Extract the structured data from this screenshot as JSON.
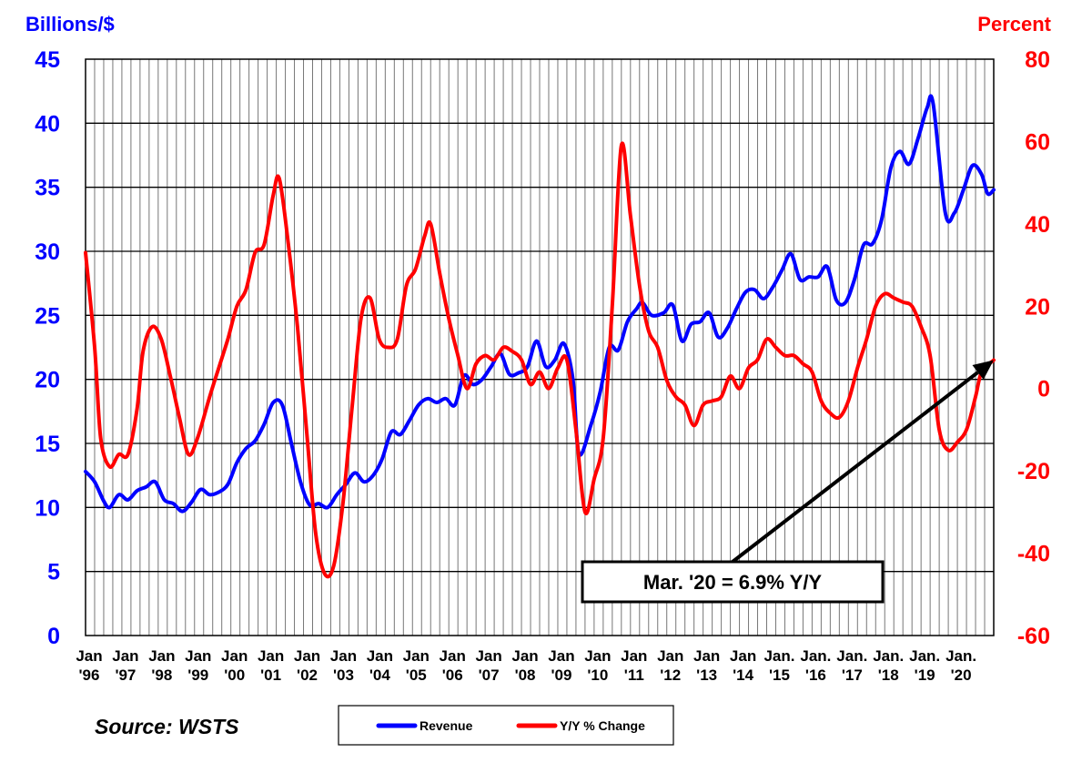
{
  "chart_data": {
    "type": "line",
    "left_axis_label": "Billions/$",
    "right_axis_label": "Percent",
    "left_ylim": [
      0,
      45
    ],
    "right_ylim": [
      -60,
      80
    ],
    "left_ticks": [
      "45",
      "40",
      "35",
      "30",
      "25",
      "20",
      "15",
      "10",
      "5",
      "0"
    ],
    "right_ticks": [
      "80",
      "60",
      "40",
      "20",
      "0",
      "-20",
      "-40",
      "-60"
    ],
    "x_tick_labels": [
      {
        "top": "Jan",
        "bottom": "'96"
      },
      {
        "top": "Jan",
        "bottom": "'97"
      },
      {
        "top": "Jan",
        "bottom": "'98"
      },
      {
        "top": "Jan",
        "bottom": "'99"
      },
      {
        "top": "Jan",
        "bottom": "'00"
      },
      {
        "top": "Jan",
        "bottom": "'01"
      },
      {
        "top": "Jan",
        "bottom": "'02"
      },
      {
        "top": "Jan",
        "bottom": "'03"
      },
      {
        "top": "Jan",
        "bottom": "'04"
      },
      {
        "top": "Jan",
        "bottom": "'05"
      },
      {
        "top": "Jan",
        "bottom": "'06"
      },
      {
        "top": "Jan",
        "bottom": "'07"
      },
      {
        "top": "Jan",
        "bottom": "'08"
      },
      {
        "top": "Jan",
        "bottom": "'09"
      },
      {
        "top": "Jan",
        "bottom": "'10"
      },
      {
        "top": "Jan",
        "bottom": "'11"
      },
      {
        "top": "Jan",
        "bottom": "'12"
      },
      {
        "top": "Jan",
        "bottom": "'13"
      },
      {
        "top": "Jan",
        "bottom": "'14"
      },
      {
        "top": "Jan.",
        "bottom": "'15"
      },
      {
        "top": "Jan.",
        "bottom": "'16"
      },
      {
        "top": "Jan.",
        "bottom": "'17"
      },
      {
        "top": "Jan.",
        "bottom": "'18"
      },
      {
        "top": "Jan.",
        "bottom": "'19"
      },
      {
        "top": "Jan.",
        "bottom": "'20"
      }
    ],
    "x_range": [
      "1996-01",
      "2020-03"
    ],
    "grid": "vertical lines by quarter, horizontal lines at left-axis ticks",
    "series": [
      {
        "name": "Revenue",
        "axis": "left",
        "color": "#0000ff",
        "points": [
          [
            "1996-01",
            12.8
          ],
          [
            "1996-04",
            12.0
          ],
          [
            "1996-07",
            10.5
          ],
          [
            "1996-09",
            10.0
          ],
          [
            "1996-12",
            11.0
          ],
          [
            "1997-03",
            10.6
          ],
          [
            "1997-06",
            11.3
          ],
          [
            "1997-09",
            11.6
          ],
          [
            "1997-12",
            12.0
          ],
          [
            "1998-03",
            10.6
          ],
          [
            "1998-06",
            10.3
          ],
          [
            "1998-09",
            9.7
          ],
          [
            "1998-12",
            10.4
          ],
          [
            "1999-03",
            11.4
          ],
          [
            "1999-06",
            11.0
          ],
          [
            "1999-09",
            11.2
          ],
          [
            "1999-12",
            11.8
          ],
          [
            "2000-03",
            13.5
          ],
          [
            "2000-06",
            14.6
          ],
          [
            "2000-09",
            15.2
          ],
          [
            "2000-12",
            16.5
          ],
          [
            "2001-03",
            18.2
          ],
          [
            "2001-06",
            18.0
          ],
          [
            "2001-09",
            15.0
          ],
          [
            "2001-12",
            12.0
          ],
          [
            "2002-03",
            10.2
          ],
          [
            "2002-06",
            10.3
          ],
          [
            "2002-09",
            10.0
          ],
          [
            "2002-12",
            11.0
          ],
          [
            "2003-03",
            11.8
          ],
          [
            "2003-06",
            12.7
          ],
          [
            "2003-09",
            12.0
          ],
          [
            "2003-12",
            12.5
          ],
          [
            "2004-03",
            13.8
          ],
          [
            "2004-06",
            15.9
          ],
          [
            "2004-09",
            15.7
          ],
          [
            "2004-12",
            16.8
          ],
          [
            "2005-03",
            18.0
          ],
          [
            "2005-06",
            18.5
          ],
          [
            "2005-09",
            18.2
          ],
          [
            "2005-12",
            18.5
          ],
          [
            "2006-03",
            18.0
          ],
          [
            "2006-06",
            20.3
          ],
          [
            "2006-09",
            19.6
          ],
          [
            "2006-12",
            20.0
          ],
          [
            "2007-03",
            21.0
          ],
          [
            "2007-06",
            22.0
          ],
          [
            "2007-09",
            20.4
          ],
          [
            "2007-12",
            20.5
          ],
          [
            "2008-03",
            21.0
          ],
          [
            "2008-06",
            23.0
          ],
          [
            "2008-09",
            21.0
          ],
          [
            "2008-12",
            21.5
          ],
          [
            "2009-03",
            22.8
          ],
          [
            "2009-06",
            20.0
          ],
          [
            "2009-08",
            14.2
          ],
          [
            "2009-12",
            16.5
          ],
          [
            "2010-03",
            19.0
          ],
          [
            "2010-06",
            22.5
          ],
          [
            "2010-09",
            22.3
          ],
          [
            "2010-12",
            24.5
          ],
          [
            "2011-03",
            25.5
          ],
          [
            "2011-05",
            26.0
          ],
          [
            "2011-08",
            25.0
          ],
          [
            "2011-12",
            25.2
          ],
          [
            "2012-03",
            25.8
          ],
          [
            "2012-06",
            23.0
          ],
          [
            "2012-09",
            24.3
          ],
          [
            "2012-12",
            24.5
          ],
          [
            "2013-03",
            25.2
          ],
          [
            "2013-06",
            23.3
          ],
          [
            "2013-09",
            24.0
          ],
          [
            "2013-12",
            25.5
          ],
          [
            "2014-03",
            26.8
          ],
          [
            "2014-06",
            27.0
          ],
          [
            "2014-09",
            26.3
          ],
          [
            "2014-12",
            27.2
          ],
          [
            "2015-03",
            28.5
          ],
          [
            "2015-06",
            29.8
          ],
          [
            "2015-09",
            27.8
          ],
          [
            "2015-12",
            28.0
          ],
          [
            "2016-03",
            28.0
          ],
          [
            "2016-06",
            28.8
          ],
          [
            "2016-09",
            26.2
          ],
          [
            "2016-12",
            26.0
          ],
          [
            "2017-03",
            27.8
          ],
          [
            "2017-06",
            30.5
          ],
          [
            "2017-09",
            30.6
          ],
          [
            "2017-12",
            32.5
          ],
          [
            "2018-03",
            36.5
          ],
          [
            "2018-06",
            37.8
          ],
          [
            "2018-09",
            36.8
          ],
          [
            "2018-12",
            38.8
          ],
          [
            "2019-03",
            41.2
          ],
          [
            "2019-05",
            41.5
          ],
          [
            "2019-09",
            33.0
          ],
          [
            "2019-12",
            33.0
          ],
          [
            "2020-03",
            34.8
          ],
          [
            "2020-06",
            36.7
          ],
          [
            "2020-09",
            36.0
          ],
          [
            "2020-11",
            34.5
          ],
          [
            "2021-01",
            34.8
          ]
        ]
      },
      {
        "name": "Y/Y % Change",
        "axis": "right",
        "color": "#ff0000",
        "points": [
          [
            "1996-01",
            33.0
          ],
          [
            "1996-04",
            10.0
          ],
          [
            "1996-06",
            -12.0
          ],
          [
            "1996-09",
            -19.0
          ],
          [
            "1996-12",
            -16.0
          ],
          [
            "1997-03",
            -16.0
          ],
          [
            "1997-06",
            -5.0
          ],
          [
            "1997-08",
            9.0
          ],
          [
            "1997-11",
            15.0
          ],
          [
            "1998-02",
            12.0
          ],
          [
            "1998-05",
            3.0
          ],
          [
            "1998-08",
            -7.0
          ],
          [
            "1998-11",
            -16.0
          ],
          [
            "1999-02",
            -12.0
          ],
          [
            "1999-06",
            -2.0
          ],
          [
            "1999-09",
            5.0
          ],
          [
            "1999-12",
            12.0
          ],
          [
            "2000-03",
            20.0
          ],
          [
            "2000-06",
            24.0
          ],
          [
            "2000-09",
            33.0
          ],
          [
            "2000-12",
            35.0
          ],
          [
            "2001-03",
            47.0
          ],
          [
            "2001-05",
            51.0
          ],
          [
            "2001-08",
            35.0
          ],
          [
            "2001-11",
            15.0
          ],
          [
            "2002-02",
            -10.0
          ],
          [
            "2002-05",
            -35.0
          ],
          [
            "2002-08",
            -45.0
          ],
          [
            "2002-11",
            -43.0
          ],
          [
            "2003-02",
            -28.0
          ],
          [
            "2003-05",
            -5.0
          ],
          [
            "2003-08",
            17.0
          ],
          [
            "2003-11",
            22.0
          ],
          [
            "2004-02",
            12.0
          ],
          [
            "2004-05",
            10.0
          ],
          [
            "2004-08",
            12.0
          ],
          [
            "2004-11",
            25.0
          ],
          [
            "2005-02",
            29.0
          ],
          [
            "2005-05",
            37.0
          ],
          [
            "2005-07",
            40.0
          ],
          [
            "2005-10",
            28.0
          ],
          [
            "2006-01",
            17.0
          ],
          [
            "2006-04",
            8.0
          ],
          [
            "2006-07",
            0.0
          ],
          [
            "2006-10",
            6.0
          ],
          [
            "2007-01",
            8.0
          ],
          [
            "2007-04",
            7.0
          ],
          [
            "2007-07",
            10.0
          ],
          [
            "2007-10",
            9.0
          ],
          [
            "2008-01",
            7.0
          ],
          [
            "2008-04",
            1.0
          ],
          [
            "2008-07",
            4.0
          ],
          [
            "2008-10",
            0.0
          ],
          [
            "2009-01",
            5.0
          ],
          [
            "2009-04",
            7.0
          ],
          [
            "2009-07",
            -10.0
          ],
          [
            "2009-10",
            -30.0
          ],
          [
            "2010-01",
            -22.0
          ],
          [
            "2010-04",
            -12.0
          ],
          [
            "2010-07",
            20.0
          ],
          [
            "2010-10",
            59.0
          ],
          [
            "2011-01",
            42.0
          ],
          [
            "2011-04",
            25.0
          ],
          [
            "2011-07",
            14.0
          ],
          [
            "2011-10",
            10.0
          ],
          [
            "2012-01",
            2.0
          ],
          [
            "2012-04",
            -2.0
          ],
          [
            "2012-07",
            -4.0
          ],
          [
            "2012-10",
            -9.0
          ],
          [
            "2013-01",
            -4.0
          ],
          [
            "2013-04",
            -3.0
          ],
          [
            "2013-07",
            -2.0
          ],
          [
            "2013-10",
            3.0
          ],
          [
            "2014-01",
            0.0
          ],
          [
            "2014-04",
            5.0
          ],
          [
            "2014-07",
            7.0
          ],
          [
            "2014-10",
            12.0
          ],
          [
            "2015-01",
            10.0
          ],
          [
            "2015-04",
            8.0
          ],
          [
            "2015-07",
            8.0
          ],
          [
            "2015-10",
            6.0
          ],
          [
            "2016-01",
            4.0
          ],
          [
            "2016-04",
            -3.0
          ],
          [
            "2016-07",
            -6.0
          ],
          [
            "2016-10",
            -7.0
          ],
          [
            "2017-01",
            -3.0
          ],
          [
            "2017-04",
            5.0
          ],
          [
            "2017-07",
            12.0
          ],
          [
            "2017-10",
            20.0
          ],
          [
            "2018-01",
            23.0
          ],
          [
            "2018-04",
            22.0
          ],
          [
            "2018-07",
            21.0
          ],
          [
            "2018-10",
            20.0
          ],
          [
            "2019-01",
            15.0
          ],
          [
            "2019-04",
            8.0
          ],
          [
            "2019-07",
            -10.0
          ],
          [
            "2019-10",
            -15.0
          ],
          [
            "2020-01",
            -13.0
          ],
          [
            "2020-04",
            -10.0
          ],
          [
            "2020-07",
            -2.0
          ],
          [
            "2020-09",
            4.0
          ],
          [
            "2021-01",
            6.9
          ]
        ]
      }
    ],
    "annotation": {
      "text": "Mar. '20 = 6.9% Y/Y",
      "points_to": [
        "2021-01",
        6.9
      ]
    },
    "legend": {
      "placement": "bottom-center",
      "items": [
        "Revenue",
        "Y/Y % Change"
      ]
    },
    "source_text": "Source: WSTS",
    "colors": {
      "revenue": "#0000ff",
      "yoy": "#ff0000",
      "grid": "#000000",
      "text": "#000000"
    }
  }
}
